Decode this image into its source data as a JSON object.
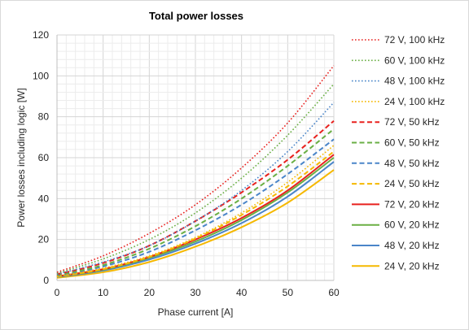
{
  "chart_data": {
    "type": "line",
    "title": "Total power losses",
    "xlabel": "Phase current [A]",
    "ylabel": "Power losses including logic [W]",
    "xlim": [
      0,
      60
    ],
    "ylim": [
      0,
      120
    ],
    "xticks": [
      0,
      10,
      20,
      30,
      40,
      50,
      60
    ],
    "yticks": [
      0,
      20,
      40,
      60,
      80,
      100,
      120
    ],
    "grid": true,
    "legend_position": "right",
    "x": [
      0,
      10,
      20,
      30,
      40,
      50,
      60
    ],
    "series": [
      {
        "name": "72 V, 100 kHz",
        "color": "#e8211e",
        "dash": "dotted",
        "values": [
          4,
          12,
          23,
          37,
          55,
          77,
          105
        ]
      },
      {
        "name": "60 V, 100 kHz",
        "color": "#6aaf44",
        "dash": "dotted",
        "values": [
          3.5,
          10.5,
          20,
          33,
          50,
          71,
          96
        ]
      },
      {
        "name": "48 V, 100 kHz",
        "color": "#4a85c9",
        "dash": "dotted",
        "values": [
          3,
          9,
          17,
          29,
          44,
          63,
          87
        ]
      },
      {
        "name": "24 V, 100 kHz",
        "color": "#f5b800",
        "dash": "dotted",
        "values": [
          2,
          6,
          12,
          21,
          33,
          48,
          66
        ]
      },
      {
        "name": "72 V, 50 kHz",
        "color": "#e8211e",
        "dash": "dashed",
        "values": [
          3,
          8.5,
          17,
          29,
          43,
          59,
          78
        ]
      },
      {
        "name": "60 V, 50 kHz",
        "color": "#6aaf44",
        "dash": "dashed",
        "values": [
          2.5,
          7.5,
          15.5,
          26.5,
          40,
          56,
          74
        ]
      },
      {
        "name": "48 V, 50 kHz",
        "color": "#4a85c9",
        "dash": "dashed",
        "values": [
          2.2,
          6.8,
          14,
          24.5,
          37,
          52,
          69
        ]
      },
      {
        "name": "24 V, 50 kHz",
        "color": "#f5b800",
        "dash": "dashed",
        "values": [
          1.8,
          5.5,
          11.5,
          20.5,
          32,
          46,
          63
        ]
      },
      {
        "name": "72 V, 20 kHz",
        "color": "#e8211e",
        "dash": "solid",
        "values": [
          2,
          5.5,
          11.5,
          20,
          30.5,
          44,
          61.5
        ]
      },
      {
        "name": "60 V, 20 kHz",
        "color": "#6aaf44",
        "dash": "solid",
        "values": [
          1.8,
          5.2,
          11,
          19,
          29.5,
          43,
          60
        ]
      },
      {
        "name": "48 V, 20 kHz",
        "color": "#4a85c9",
        "dash": "solid",
        "values": [
          1.6,
          4.8,
          10.2,
          18,
          28,
          41,
          58
        ]
      },
      {
        "name": "24 V, 20 kHz",
        "color": "#f5b800",
        "dash": "solid",
        "values": [
          1.3,
          4,
          9,
          16.5,
          26,
          38,
          54
        ]
      }
    ]
  }
}
